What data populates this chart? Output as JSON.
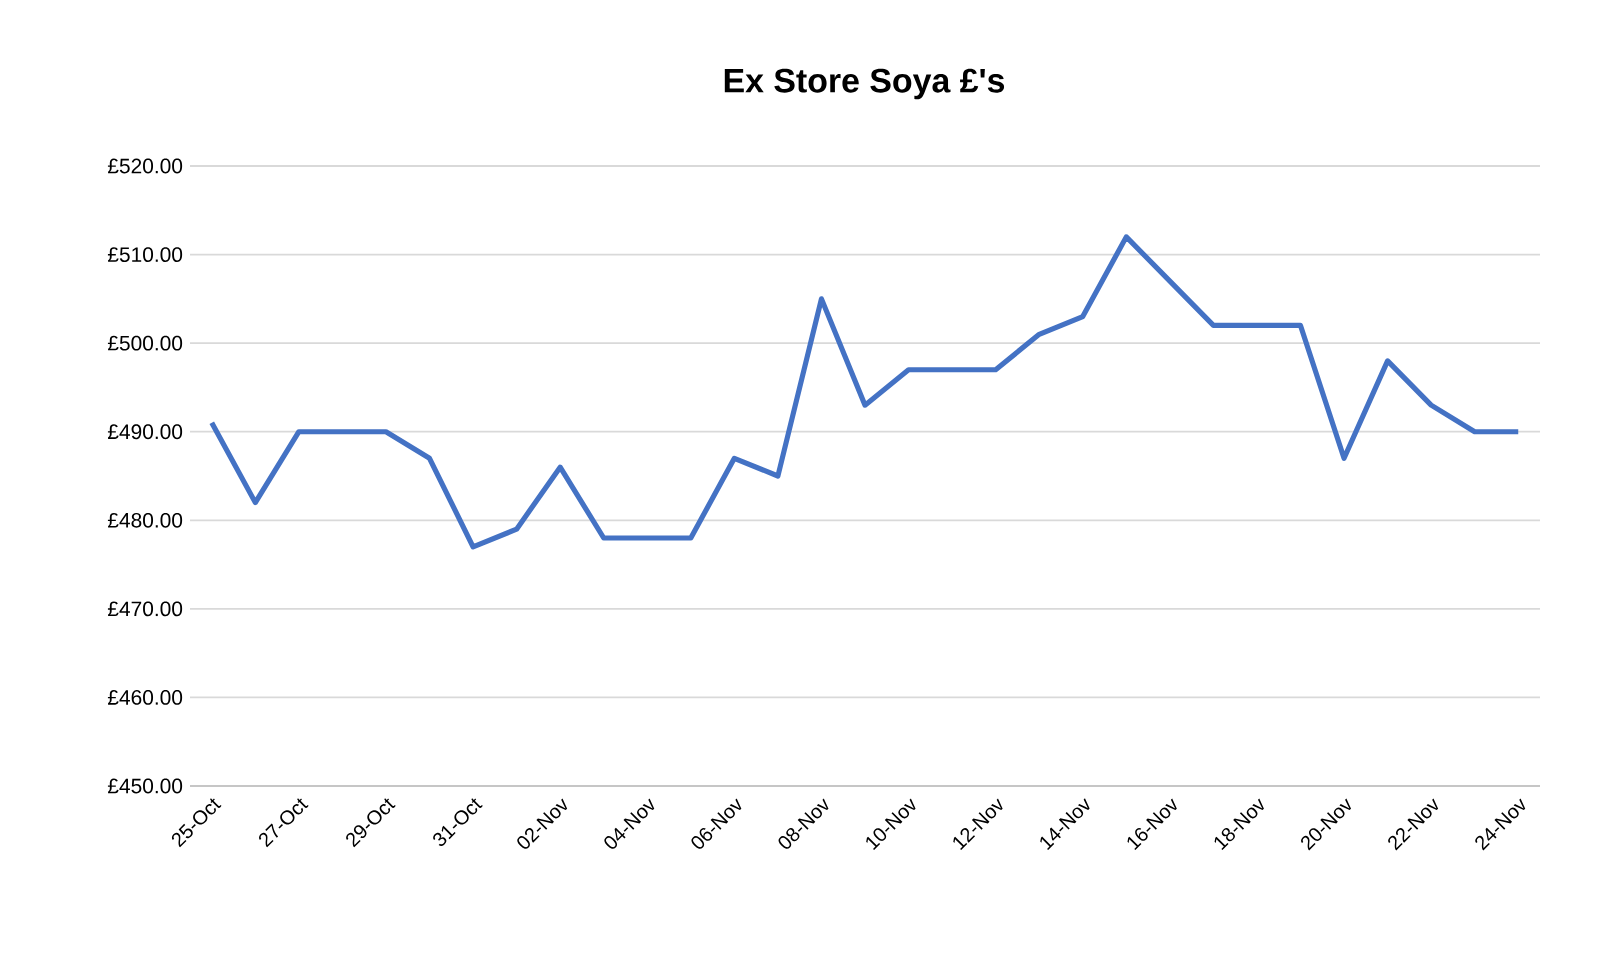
{
  "chart_data": {
    "type": "line",
    "title": "Ex Store Soya  £'s",
    "categories": [
      "25-Oct",
      null,
      "27-Oct",
      null,
      "29-Oct",
      null,
      "31-Oct",
      null,
      "02-Nov",
      null,
      "04-Nov",
      null,
      "06-Nov",
      null,
      "08-Nov",
      null,
      "10-Nov",
      null,
      "12-Nov",
      null,
      "14-Nov",
      null,
      "16-Nov",
      null,
      "18-Nov",
      null,
      "20-Nov",
      null,
      "22-Nov",
      null,
      "24-Nov"
    ],
    "series": [
      {
        "color": "#4472c4",
        "values": [
          491,
          482,
          490,
          490,
          490,
          487,
          477,
          479,
          486,
          478,
          478,
          478,
          487,
          485,
          505,
          493,
          497,
          497,
          497,
          501,
          503,
          512,
          507,
          502,
          502,
          502,
          487,
          498,
          493,
          490,
          490
        ]
      }
    ],
    "ylim": [
      450,
      520
    ],
    "yticks": [
      {
        "value": 450,
        "label": "£450.00"
      },
      {
        "value": 460,
        "label": "£460.00"
      },
      {
        "value": 470,
        "label": "£470.00"
      },
      {
        "value": 480,
        "label": "£480.00"
      },
      {
        "value": 490,
        "label": "£490.00"
      },
      {
        "value": 500,
        "label": "£500.00"
      },
      {
        "value": 510,
        "label": "£510.00"
      },
      {
        "value": 520,
        "label": "£520.00"
      }
    ],
    "grid": "y"
  }
}
